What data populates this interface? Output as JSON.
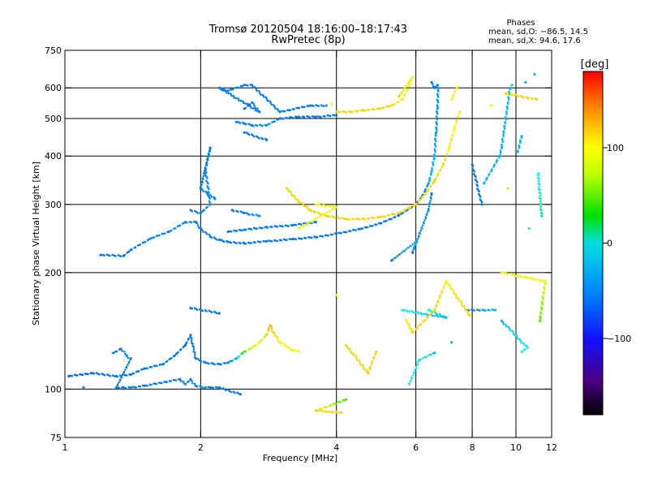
{
  "chart_data": {
    "type": "scatter",
    "title": "Tromsø 20120504 18:16:00–18:17:43",
    "subtitle": "RwPretec (8p)",
    "stats": {
      "heading": "Phases",
      "line1": "mean, sd,O: −86.5, 14.5",
      "line2": "mean, sd,X:  94.6, 17.6"
    },
    "xlabel": "Frequency [MHz]",
    "ylabel": "Stationary phase Virtual Height [km]",
    "x_scale": "log",
    "y_scale": "log",
    "xlim": [
      1,
      12
    ],
    "ylim": [
      75,
      750
    ],
    "x_ticks": [
      1,
      2,
      4,
      6,
      8,
      10,
      12
    ],
    "y_ticks": [
      75,
      100,
      200,
      300,
      400,
      500,
      600,
      750
    ],
    "x_gridlines": [
      2,
      4,
      6,
      8,
      10
    ],
    "y_gridlines": [
      100,
      200,
      300,
      400,
      500,
      600
    ],
    "grid": true,
    "colorbar": {
      "label": "[deg]",
      "range": [
        -180,
        180
      ],
      "ticks": [
        100,
        0,
        -100
      ]
    },
    "series": [
      {
        "values": [
          [
            1.02,
            108,
            -105
          ],
          [
            1.15,
            110,
            -105
          ],
          [
            1.3,
            108,
            -100
          ],
          [
            1.4,
            109,
            -100
          ],
          [
            1.5,
            113,
            -100
          ],
          [
            1.65,
            116,
            -100
          ],
          [
            1.75,
            122,
            -100
          ],
          [
            1.85,
            130,
            -100
          ],
          [
            1.9,
            138,
            -100
          ],
          [
            1.95,
            120,
            -100
          ],
          [
            2.05,
            117,
            -100
          ],
          [
            2.2,
            116,
            -100
          ],
          [
            2.3,
            117,
            -100
          ],
          [
            2.4,
            120,
            -80
          ],
          [
            2.5,
            125,
            40
          ],
          [
            2.6,
            128,
            90
          ],
          [
            2.7,
            132,
            100
          ],
          [
            2.8,
            138,
            110
          ],
          [
            2.85,
            146,
            120
          ],
          [
            2.9,
            140,
            110
          ],
          [
            3.0,
            132,
            100
          ],
          [
            3.2,
            126,
            100
          ],
          [
            3.3,
            125,
            100
          ]
        ]
      },
      {
        "values": [
          [
            1.28,
            124,
            -100
          ],
          [
            1.33,
            127,
            -100
          ],
          [
            1.37,
            122,
            -100
          ],
          [
            1.4,
            120,
            -100
          ],
          [
            1.3,
            101,
            -100
          ],
          [
            1.35,
            101,
            -100
          ],
          [
            1.4,
            101,
            -100
          ],
          [
            1.5,
            102,
            -100
          ],
          [
            1.8,
            106,
            -100
          ],
          [
            1.85,
            103,
            -95
          ],
          [
            1.9,
            106,
            -100
          ],
          [
            1.95,
            102,
            -95
          ],
          [
            2.05,
            101,
            -95
          ],
          [
            2.1,
            101,
            -100
          ],
          [
            2.2,
            101,
            -100
          ],
          [
            2.45,
            97,
            -100
          ],
          [
            1.1,
            101,
            -100
          ],
          [
            1.9,
            162,
            -100
          ],
          [
            2.2,
            157,
            -100
          ]
        ]
      },
      {
        "values": [
          [
            1.2,
            222,
            -100
          ],
          [
            1.35,
            221,
            -100
          ],
          [
            1.4,
            229,
            -100
          ],
          [
            1.55,
            245,
            -95
          ],
          [
            1.7,
            255,
            -95
          ],
          [
            1.85,
            270,
            -95
          ],
          [
            1.95,
            270,
            -100
          ],
          [
            2.0,
            260,
            -100
          ],
          [
            2.1,
            248,
            -100
          ],
          [
            2.2,
            243,
            -100
          ],
          [
            2.3,
            240,
            -100
          ],
          [
            2.5,
            238,
            -100
          ],
          [
            2.8,
            241,
            -100
          ],
          [
            3.2,
            244,
            -100
          ],
          [
            3.6,
            247,
            -100
          ],
          [
            4.0,
            252,
            -100
          ],
          [
            4.5,
            259,
            -100
          ],
          [
            5.0,
            268,
            -100
          ],
          [
            5.5,
            281,
            -100
          ],
          [
            6.0,
            300,
            -100
          ],
          [
            6.2,
            315,
            -100
          ],
          [
            6.4,
            340,
            -90
          ],
          [
            6.5,
            365,
            -80
          ],
          [
            6.6,
            400,
            -80
          ],
          [
            6.65,
            460,
            -90
          ],
          [
            6.7,
            530,
            -90
          ],
          [
            6.72,
            600,
            -90
          ]
        ]
      },
      {
        "values": [
          [
            2.3,
            255,
            -100
          ],
          [
            2.5,
            258,
            -100
          ],
          [
            2.8,
            262,
            -100
          ],
          [
            3.2,
            265,
            -100
          ],
          [
            3.6,
            270,
            -100
          ],
          [
            2.35,
            290,
            -100
          ],
          [
            2.5,
            285,
            -100
          ],
          [
            2.7,
            280,
            -90
          ],
          [
            1.9,
            290,
            -100
          ],
          [
            2.0,
            285,
            -100
          ],
          [
            2.1,
            300,
            -90
          ],
          [
            2.05,
            370,
            -100
          ],
          [
            2.1,
            420,
            -100
          ],
          [
            2.0,
            330,
            -100
          ],
          [
            2.15,
            310,
            -100
          ]
        ]
      },
      {
        "values": [
          [
            3.1,
            330,
            110
          ],
          [
            3.3,
            305,
            110
          ],
          [
            3.5,
            290,
            110
          ],
          [
            3.8,
            280,
            110
          ],
          [
            4.2,
            275,
            110
          ],
          [
            4.6,
            275,
            110
          ],
          [
            5.0,
            278,
            110
          ],
          [
            5.5,
            285,
            110
          ],
          [
            6.0,
            300,
            110
          ],
          [
            6.3,
            320,
            110
          ],
          [
            6.6,
            345,
            110
          ],
          [
            6.9,
            380,
            105
          ],
          [
            7.1,
            420,
            100
          ],
          [
            7.3,
            470,
            100
          ],
          [
            7.5,
            520,
            100
          ],
          [
            3.6,
            300,
            100
          ],
          [
            4.0,
            295,
            100
          ],
          [
            3.3,
            260,
            100
          ]
        ]
      },
      {
        "values": [
          [
            2.4,
            490,
            -100
          ],
          [
            2.5,
            485,
            -100
          ],
          [
            2.6,
            480,
            -100
          ],
          [
            2.8,
            480,
            -90
          ],
          [
            3.0,
            500,
            -100
          ],
          [
            3.3,
            505,
            -100
          ],
          [
            3.6,
            505,
            -100
          ],
          [
            4.0,
            510,
            -100
          ],
          [
            2.5,
            530,
            -100
          ],
          [
            2.6,
            550,
            -100
          ],
          [
            2.7,
            520,
            -100
          ],
          [
            2.2,
            600,
            -100
          ],
          [
            2.3,
            590,
            -100
          ],
          [
            2.5,
            610,
            -100
          ],
          [
            2.6,
            610,
            -100
          ],
          [
            3.0,
            520,
            -100
          ],
          [
            3.5,
            540,
            -100
          ],
          [
            3.8,
            540,
            -90
          ],
          [
            2.5,
            460,
            -100
          ],
          [
            2.8,
            440,
            -100
          ]
        ]
      },
      {
        "values": [
          [
            4.0,
            520,
            110
          ],
          [
            4.3,
            520,
            110
          ],
          [
            4.6,
            525,
            110
          ],
          [
            5.0,
            530,
            110
          ],
          [
            5.3,
            540,
            110
          ],
          [
            5.6,
            560,
            100
          ],
          [
            5.8,
            610,
            100
          ],
          [
            5.9,
            640,
            100
          ],
          [
            5.5,
            570,
            110
          ],
          [
            7.2,
            560,
            100
          ],
          [
            7.4,
            600,
            100
          ],
          [
            3.9,
            545,
            100
          ]
        ]
      },
      {
        "values": [
          [
            6.5,
            620,
            -100
          ],
          [
            6.6,
            600,
            -100
          ],
          [
            6.7,
            610,
            -100
          ],
          [
            6.5,
            320,
            -100
          ],
          [
            6.4,
            290,
            -90
          ],
          [
            5.9,
            225,
            -100
          ],
          [
            6.0,
            240,
            -80
          ],
          [
            5.3,
            215,
            -100
          ],
          [
            8.5,
            340,
            -80
          ],
          [
            9.2,
            400,
            -80
          ],
          [
            9.3,
            420,
            -80
          ],
          [
            9.4,
            460,
            -80
          ],
          [
            9.7,
            600,
            -80
          ],
          [
            9.8,
            610,
            -70
          ],
          [
            10.1,
            410,
            -80
          ],
          [
            10.3,
            450,
            -80
          ],
          [
            10.5,
            620,
            -80
          ],
          [
            10.7,
            260,
            -60
          ],
          [
            11.0,
            650,
            -80
          ],
          [
            11.2,
            360,
            -60
          ],
          [
            11.4,
            280,
            -30
          ],
          [
            8.4,
            300,
            -100
          ],
          [
            8.0,
            380,
            -100
          ],
          [
            7.8,
            160,
            -100
          ],
          [
            9.0,
            160,
            -80
          ],
          [
            6.4,
            160,
            -60
          ],
          [
            7.0,
            153,
            -80
          ],
          [
            5.6,
            160,
            -60
          ],
          [
            6.6,
            124,
            -80
          ],
          [
            6.1,
            119,
            -60
          ],
          [
            5.8,
            103,
            -60
          ],
          [
            7.2,
            132,
            -80
          ],
          [
            9.3,
            150,
            -80
          ],
          [
            10.6,
            128,
            -60
          ],
          [
            10.3,
            125,
            -60
          ]
        ]
      },
      {
        "values": [
          [
            5.7,
            151,
            100
          ],
          [
            5.9,
            140,
            110
          ],
          [
            6.6,
            160,
            110
          ],
          [
            7.0,
            190,
            100
          ],
          [
            7.9,
            155,
            110
          ],
          [
            8.8,
            540,
            100
          ],
          [
            9.6,
            330,
            110
          ],
          [
            9.5,
            580,
            110
          ],
          [
            11.1,
            560,
            110
          ],
          [
            11.3,
            150,
            40
          ],
          [
            11.6,
            190,
            100
          ],
          [
            9.3,
            200,
            100
          ],
          [
            4.0,
            175,
            100
          ],
          [
            4.2,
            130,
            110
          ],
          [
            4.7,
            110,
            110
          ],
          [
            4.9,
            125,
            110
          ],
          [
            4.1,
            87,
            110
          ],
          [
            3.6,
            88,
            110
          ],
          [
            4.2,
            94,
            40
          ]
        ]
      }
    ]
  }
}
